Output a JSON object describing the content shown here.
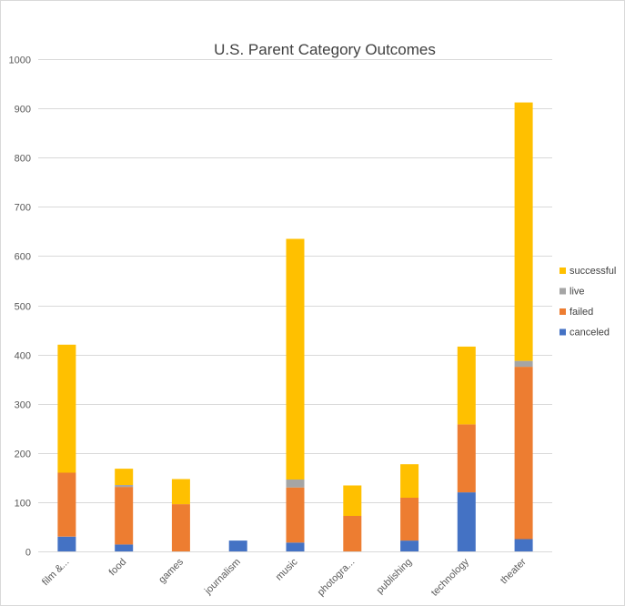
{
  "chart_data": {
    "type": "bar",
    "stacked": true,
    "title": "U.S. Parent Category Outcomes",
    "xlabel": "",
    "ylabel": "",
    "ylim": [
      0,
      1000
    ],
    "yticks": [
      0,
      100,
      200,
      300,
      400,
      500,
      600,
      700,
      800,
      900,
      1000
    ],
    "grid": true,
    "legend_position": "right",
    "categories": [
      "film &...",
      "food",
      "games",
      "journalism",
      "music",
      "photogra...",
      "publishing",
      "technology",
      "theater"
    ],
    "series": [
      {
        "name": "canceled",
        "color": "#4472C4",
        "values": [
          30,
          14,
          0,
          22,
          18,
          0,
          22,
          120,
          25
        ]
      },
      {
        "name": "failed",
        "color": "#ED7D31",
        "values": [
          130,
          117,
          96,
          0,
          112,
          72,
          87,
          138,
          350
        ]
      },
      {
        "name": "live",
        "color": "#A5A5A5",
        "values": [
          0,
          4,
          0,
          0,
          16,
          0,
          0,
          0,
          12
        ]
      },
      {
        "name": "successful",
        "color": "#FFC000",
        "values": [
          260,
          33,
          51,
          0,
          489,
          62,
          68,
          158,
          525
        ]
      }
    ],
    "legend_order": [
      "successful",
      "live",
      "failed",
      "canceled"
    ]
  }
}
